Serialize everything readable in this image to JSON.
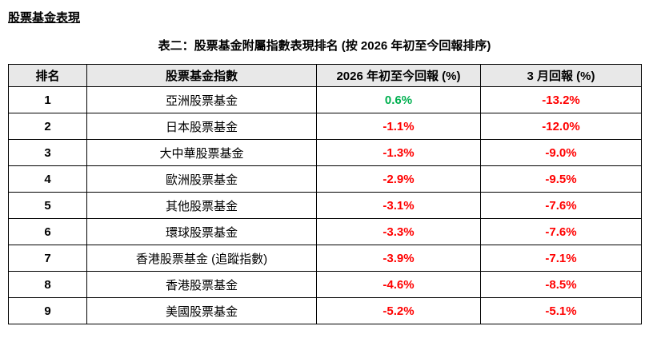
{
  "page": {
    "title": "股票基金表現"
  },
  "table": {
    "caption": "表二：股票基金附屬指數表現排名 (按 2026 年初至今回報排序)",
    "columns": [
      "排名",
      "股票基金指數",
      "2026 年初至今回報 (%)",
      "3 月回報 (%)"
    ],
    "rows": [
      {
        "rank": "1",
        "fund": "亞洲股票基金",
        "ytd": "0.6%",
        "mar": "-13.2%"
      },
      {
        "rank": "2",
        "fund": "日本股票基金",
        "ytd": "-1.1%",
        "mar": "-12.0%"
      },
      {
        "rank": "3",
        "fund": "大中華股票基金",
        "ytd": "-1.3%",
        "mar": "-9.0%"
      },
      {
        "rank": "4",
        "fund": "歐洲股票基金",
        "ytd": "-2.9%",
        "mar": "-9.5%"
      },
      {
        "rank": "5",
        "fund": "其他股票基金",
        "ytd": "-3.1%",
        "mar": "-7.6%"
      },
      {
        "rank": "6",
        "fund": "環球股票基金",
        "ytd": "-3.3%",
        "mar": "-7.6%"
      },
      {
        "rank": "7",
        "fund": "香港股票基金 (追蹤指數)",
        "ytd": "-3.9%",
        "mar": "-7.1%"
      },
      {
        "rank": "8",
        "fund": "香港股票基金",
        "ytd": "-4.6%",
        "mar": "-8.5%"
      },
      {
        "rank": "9",
        "fund": "美國股票基金",
        "ytd": "-5.2%",
        "mar": "-5.1%"
      }
    ]
  },
  "colors": {
    "positive": "#00B050",
    "negative": "#FF0000",
    "header_bg": "#E8E8E8",
    "border": "#000000"
  }
}
